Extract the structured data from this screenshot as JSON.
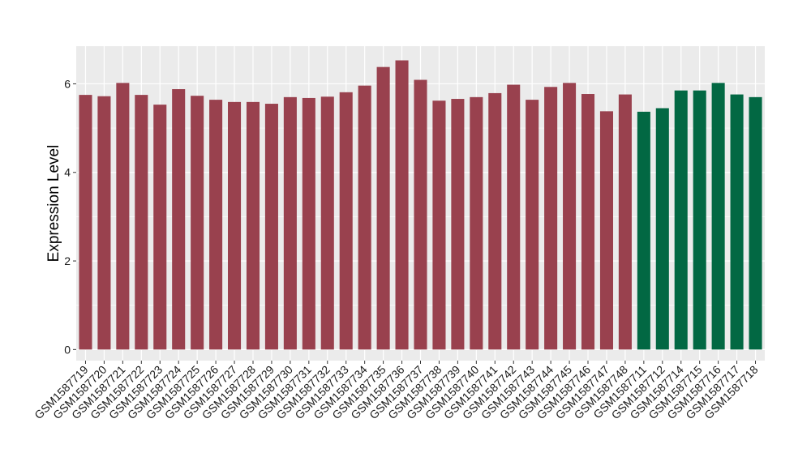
{
  "chart_data": {
    "type": "bar",
    "ylabel": "Expression Level",
    "xlabel": "",
    "ylim": [
      -0.25,
      6.85
    ],
    "yticks": [
      0,
      2,
      4,
      6
    ],
    "grid": true,
    "legend": "none",
    "colors": {
      "group1": "#99414e",
      "group2": "#026843",
      "panel": "#ebebeb",
      "grid": "#ffffff"
    },
    "categories": [
      "GSM1587719",
      "GSM1587720",
      "GSM1587721",
      "GSM1587722",
      "GSM1587723",
      "GSM1587724",
      "GSM1587725",
      "GSM1587726",
      "GSM1587727",
      "GSM1587728",
      "GSM1587729",
      "GSM1587730",
      "GSM1587731",
      "GSM1587732",
      "GSM1587733",
      "GSM1587734",
      "GSM1587735",
      "GSM1587736",
      "GSM1587737",
      "GSM1587738",
      "GSM1587739",
      "GSM1587740",
      "GSM1587741",
      "GSM1587742",
      "GSM1587743",
      "GSM1587744",
      "GSM1587745",
      "GSM1587746",
      "GSM1587747",
      "GSM1587748",
      "GSM1587711",
      "GSM1587712",
      "GSM1587714",
      "GSM1587715",
      "GSM1587716",
      "GSM1587717",
      "GSM1587718"
    ],
    "values": [
      5.75,
      5.72,
      6.02,
      5.75,
      5.53,
      5.88,
      5.73,
      5.64,
      5.59,
      5.59,
      5.55,
      5.7,
      5.68,
      5.71,
      5.81,
      5.96,
      6.38,
      6.53,
      6.09,
      5.62,
      5.66,
      5.7,
      5.79,
      5.98,
      5.64,
      5.93,
      6.02,
      5.77,
      5.38,
      5.76,
      5.37,
      5.45,
      5.85,
      5.85,
      6.02,
      5.76,
      5.7
    ],
    "groups": [
      1,
      1,
      1,
      1,
      1,
      1,
      1,
      1,
      1,
      1,
      1,
      1,
      1,
      1,
      1,
      1,
      1,
      1,
      1,
      1,
      1,
      1,
      1,
      1,
      1,
      1,
      1,
      1,
      1,
      1,
      2,
      2,
      2,
      2,
      2,
      2,
      2
    ]
  }
}
